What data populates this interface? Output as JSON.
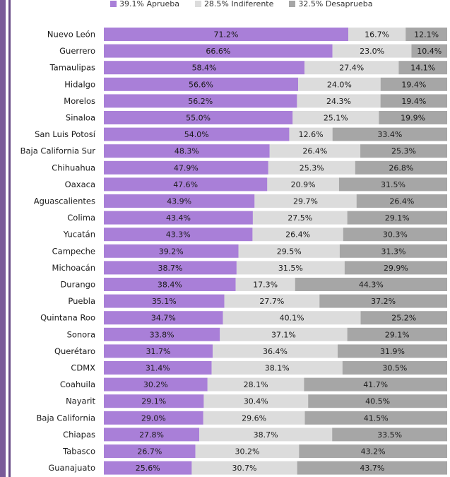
{
  "legend": {
    "items": [
      {
        "label": "39.1% Aprueba",
        "color": "#a97fd8"
      },
      {
        "label": "28.5% Indiferente",
        "color": "#dcdcdc"
      },
      {
        "label": "32.5% Desaprueba",
        "color": "#a6a6a6"
      }
    ]
  },
  "chart_data": {
    "type": "bar",
    "orientation": "horizontal",
    "stacked": true,
    "xlim": [
      0,
      100
    ],
    "grid": false,
    "legend_position": "top",
    "colors": {
      "aprueba": "#a97fd8",
      "indiferente": "#dcdcdc",
      "desaprueba": "#a6a6a6"
    },
    "categories": [
      "Nuevo León",
      "Guerrero",
      "Tamaulipas",
      "Hidalgo",
      "Morelos",
      "Sinaloa",
      "San Luis Potosí",
      "Baja California Sur",
      "Chihuahua",
      "Oaxaca",
      "Aguascalientes",
      "Colima",
      "Yucatán",
      "Campeche",
      "Michoacán",
      "Durango",
      "Puebla",
      "Quintana Roo",
      "Sonora",
      "Querétaro",
      "CDMX",
      "Coahuila",
      "Nayarit",
      "Baja California",
      "Chiapas",
      "Tabasco",
      "Guanajuato"
    ],
    "series": [
      {
        "name": "39.1% Aprueba",
        "values": [
          71.2,
          66.6,
          58.4,
          56.6,
          56.2,
          55.0,
          54.0,
          48.3,
          47.9,
          47.6,
          43.9,
          43.4,
          43.3,
          39.2,
          38.7,
          38.4,
          35.1,
          34.7,
          33.8,
          31.7,
          31.4,
          30.2,
          29.1,
          29.0,
          27.8,
          26.7,
          25.6
        ],
        "labels": [
          "71.2%",
          "66.6%",
          "58.4%",
          "56.6%",
          "56.2%",
          "55.0%",
          "54.0%",
          "48.3%",
          "47.9%",
          "47.6%",
          "43.9%",
          "43.4%",
          "43.3%",
          "39.2%",
          "38.7%",
          "38.4%",
          "35.1%",
          "34.7%",
          "33.8%",
          "31.7%",
          "31.4%",
          "30.2%",
          "29.1%",
          "29.0%",
          "27.8%",
          "26.7%",
          "25.6%"
        ]
      },
      {
        "name": "28.5% Indiferente",
        "values": [
          16.7,
          23.0,
          27.4,
          24.0,
          24.3,
          25.1,
          12.6,
          26.4,
          25.3,
          20.9,
          29.7,
          27.5,
          26.4,
          29.5,
          31.5,
          17.3,
          27.7,
          40.1,
          37.1,
          36.4,
          38.1,
          28.1,
          30.4,
          29.6,
          38.7,
          30.2,
          30.7
        ],
        "labels": [
          "16.7%",
          "23.0%",
          "27.4%",
          "24.0%",
          "24.3%",
          "25.1%",
          "12.6%",
          "26.4%",
          "25.3%",
          "20.9%",
          "29.7%",
          "27.5%",
          "26.4%",
          "29.5%",
          "31.5%",
          "17.3%",
          "27.7%",
          "40.1%",
          "37.1%",
          "36.4%",
          "38.1%",
          "28.1%",
          "30.4%",
          "29.6%",
          "38.7%",
          "30.2%",
          "30.7%"
        ]
      },
      {
        "name": "32.5% Desaprueba",
        "values": [
          12.1,
          10.4,
          14.1,
          19.4,
          19.4,
          19.9,
          33.4,
          25.3,
          26.8,
          31.5,
          26.4,
          29.1,
          30.3,
          31.3,
          29.9,
          44.3,
          37.2,
          25.2,
          29.1,
          31.9,
          30.5,
          41.7,
          40.5,
          41.5,
          33.5,
          43.2,
          43.7
        ],
        "labels": [
          "12.1%",
          "10.4%",
          "14.1%",
          "19.4%",
          "19.4%",
          "19.9%",
          "33.4%",
          "25.3%",
          "26.8%",
          "31.5%",
          "26.4%",
          "29.1%",
          "30.3%",
          "31.3%",
          "29.9%",
          "44.3%",
          "37.2%",
          "25.2%",
          "29.1%",
          "31.9%",
          "30.5%",
          "41.7%",
          "40.5%",
          "41.5%",
          "33.5%",
          "43.2%",
          "43.7%"
        ]
      }
    ]
  }
}
